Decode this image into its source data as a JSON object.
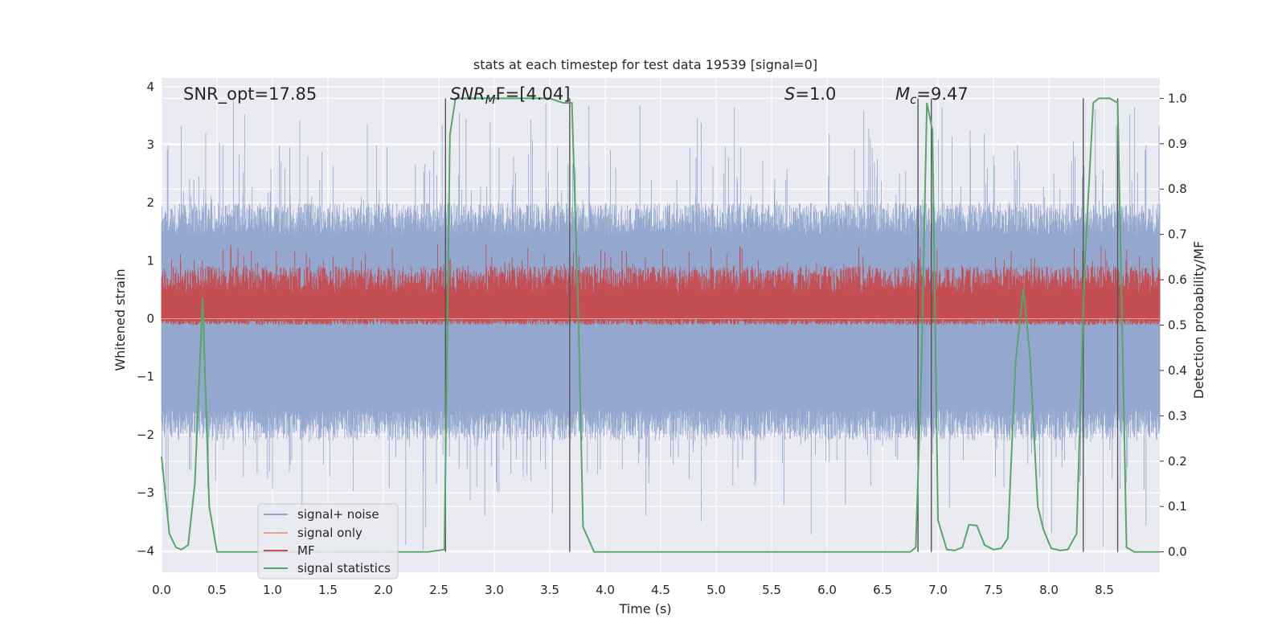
{
  "chart_data": {
    "type": "line",
    "title": "stats at each timestep for test data 19539 [signal=0]",
    "xlabel": "Time (s)",
    "ylabel_left": "Whitened strain",
    "ylabel_right": "Detection probability/MF",
    "xlim": [
      0.0,
      9.0
    ],
    "ylim_left": [
      -4.37,
      4.15
    ],
    "ylim_right": [
      -0.045,
      1.045
    ],
    "x_ticks": [
      "0.0",
      "0.5",
      "1.0",
      "1.5",
      "2.0",
      "2.5",
      "3.0",
      "3.5",
      "4.0",
      "4.5",
      "5.0",
      "5.5",
      "6.0",
      "6.5",
      "7.0",
      "7.5",
      "8.0",
      "8.5"
    ],
    "y_ticks_left": [
      "4",
      "3",
      "2",
      "1",
      "0",
      "−1",
      "−2",
      "−3",
      "−4"
    ],
    "y_ticks_right": [
      "1.0",
      "0.9",
      "0.8",
      "0.7",
      "0.6",
      "0.5",
      "0.4",
      "0.3",
      "0.2",
      "0.1",
      "0.0"
    ],
    "grid": true,
    "legend_position": "lower-left",
    "annotations": {
      "snr_opt": "SNR_opt=17.85",
      "snr_mf_main": "SNR",
      "snr_mf_sub": "M",
      "snr_mf_tail": "F=[4.04]",
      "s_main": "S",
      "s_tail": "=1.0",
      "mc_main": "M",
      "mc_sub": "c",
      "mc_tail": "=9.47"
    },
    "series": [
      {
        "name": "signal+ noise",
        "color": "#8fa4cc",
        "description_type": "noise-band",
        "band_core": [
          -1.55,
          1.45
        ],
        "spike_range": [
          -4.0,
          3.8
        ]
      },
      {
        "name": "signal only",
        "color": "#e8a48a",
        "values_const": 0.0
      },
      {
        "name": "MF",
        "color": "#c44e52",
        "band": [
          0.0,
          0.75
        ]
      },
      {
        "name": "signal statistics",
        "color": "#55a868",
        "x": [
          0.0,
          0.07,
          0.13,
          0.18,
          0.24,
          0.3,
          0.37,
          0.43,
          0.5,
          0.6,
          1.0,
          1.5,
          2.0,
          2.4,
          2.55,
          2.6,
          2.65,
          2.7,
          3.0,
          3.5,
          3.62,
          3.7,
          3.76,
          3.8,
          3.9,
          4.0,
          5.0,
          6.0,
          6.75,
          6.8,
          6.85,
          6.9,
          6.95,
          7.0,
          7.08,
          7.15,
          7.22,
          7.28,
          7.35,
          7.42,
          7.5,
          7.57,
          7.63,
          7.7,
          7.77,
          7.83,
          7.9,
          7.95,
          8.02,
          8.1,
          8.17,
          8.25,
          8.32,
          8.4,
          8.45,
          8.5,
          8.55,
          8.62,
          8.7,
          8.77,
          8.85,
          9.0
        ],
        "values": [
          0.21,
          0.04,
          0.01,
          0.005,
          0.015,
          0.15,
          0.56,
          0.1,
          0.0,
          0.0,
          0.0,
          0.0,
          0.0,
          0.0,
          0.005,
          0.92,
          1.0,
          1.0,
          1.0,
          1.0,
          0.99,
          0.99,
          0.5,
          0.055,
          0.0,
          0.0,
          0.0,
          0.0,
          0.0,
          0.01,
          0.4,
          0.99,
          0.93,
          0.07,
          0.005,
          0.003,
          0.01,
          0.06,
          0.058,
          0.015,
          0.005,
          0.008,
          0.03,
          0.42,
          0.58,
          0.43,
          0.1,
          0.05,
          0.008,
          0.003,
          0.005,
          0.04,
          0.62,
          0.99,
          1.0,
          1.0,
          1.0,
          0.99,
          0.01,
          0.0,
          0.0,
          0.0
        ]
      }
    ],
    "vertical_lines_x": [
      2.56,
      3.68,
      6.82,
      6.94,
      8.31,
      8.62
    ]
  }
}
